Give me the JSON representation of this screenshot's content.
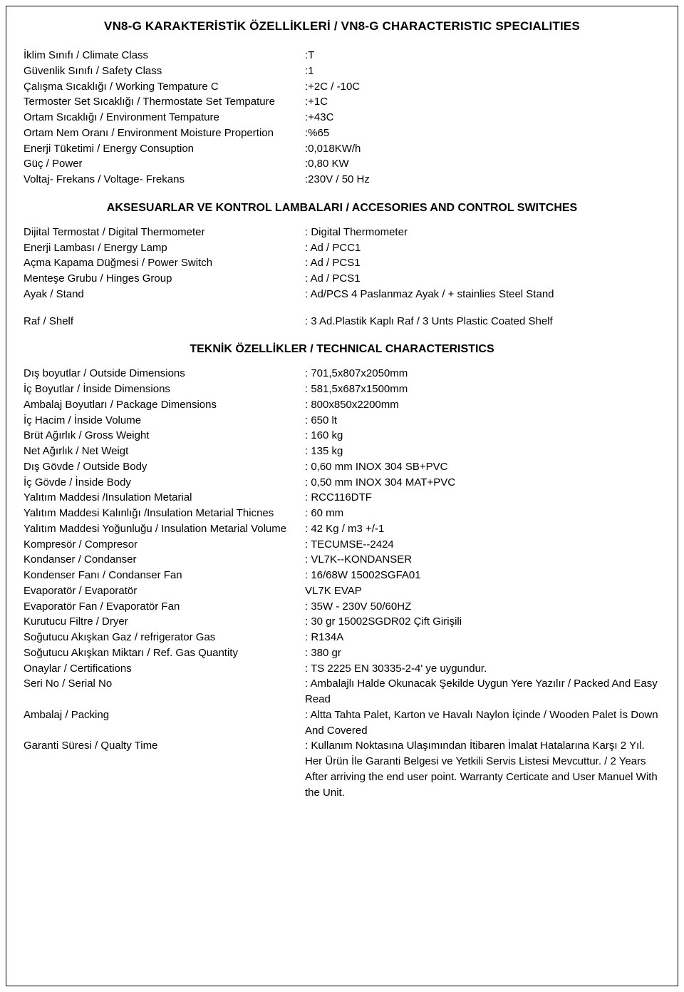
{
  "title": "VN8-G  KARAKTERİSTİK ÖZELLİKLERİ / VN8-G CHARACTERISTIC SPECIALITIES",
  "section1": [
    {
      "label": "İklim Sınıfı / Climate Class",
      "value": ":T"
    },
    {
      "label": "Güvenlik Sınıfı / Safety Class",
      "value": ":1"
    },
    {
      "label": "Çalışma Sıcaklığı / Working Tempature C",
      "value": ":+2C / -10C"
    },
    {
      "label": "Termoster Set Sıcaklığı / Thermostate Set Tempature",
      "value": ":+1C"
    },
    {
      "label": "Ortam Sıcaklığı / Environment Tempature",
      "value": ":+43C"
    },
    {
      "label": "Ortam Nem Oranı / Environment Moisture Propertion",
      "value": ":%65"
    },
    {
      "label": "Enerji Tüketimi / Energy Consuption",
      "value": ":0,018KW/h"
    },
    {
      "label": "Güç / Power",
      "value": ":0,80 KW"
    },
    {
      "label": "Voltaj- Frekans / Voltage- Frekans",
      "value": ":230V / 50 Hz"
    }
  ],
  "heading2": "AKSESUARLAR VE KONTROL LAMBALARI / ACCESORIES AND CONTROL SWITCHES",
  "section2": [
    {
      "label": "Dijital Termostat / Digital Thermometer",
      "value": ": Digital Thermometer"
    },
    {
      "label": "Enerji Lambası / Energy Lamp",
      "value": ": Ad / PCC1"
    },
    {
      "label": "Açma Kapama Düğmesi / Power Switch",
      "value": ": Ad / PCS1"
    },
    {
      "label": "Menteşe Grubu / Hinges Group",
      "value": ": Ad / PCS1"
    },
    {
      "label": "Ayak / Stand",
      "value": ": Ad/PCS 4 Paslanmaz Ayak / + stainlies Steel Stand"
    }
  ],
  "section2b": [
    {
      "label": "Raf / Shelf",
      "value": ": 3 Ad.Plastik Kaplı Raf / 3 Unts Plastic Coated Shelf"
    }
  ],
  "heading3": "TEKNİK ÖZELLİKLER / TECHNICAL CHARACTERISTICS",
  "section3": [
    {
      "label": "Dış boyutlar / Outside Dimensions",
      "value": ": 701,5x807x2050mm"
    },
    {
      "label": "İç Boyutlar / İnside Dimensions",
      "value": ": 581,5x687x1500mm"
    },
    {
      "label": "Ambalaj Boyutları / Package Dimensions",
      "value": ": 800x850x2200mm"
    },
    {
      "label": "İç Hacim / İnside Volume",
      "value": ": 650 lt"
    },
    {
      "label": "Brüt Ağırlık / Gross Weight",
      "value": ": 160 kg"
    },
    {
      "label": "Net Ağırlık / Net Weigt",
      "value": ": 135 kg"
    },
    {
      "label": "Dış Gövde / Outside Body",
      "value": ": 0,60 mm INOX 304 SB+PVC"
    },
    {
      "label": "İç Gövde / İnside Body",
      "value": ": 0,50 mm INOX 304 MAT+PVC"
    },
    {
      "label": "Yalıtım Maddesi /Insulation Metarial",
      "value": ": RCC116DTF"
    },
    {
      "label": "Yalıtım Maddesi Kalınlığı /Insulation Metarial Thicnes",
      "value": ": 60 mm"
    },
    {
      "label": "Yalıtım Maddesi Yoğunluğu / Insulation Metarial Volume",
      "value": ": 42 Kg / m3 +/-1"
    },
    {
      "label": "Kompresör / Compresor",
      "value": ": TECUMSE--2424"
    },
    {
      "label": "Kondanser / Condanser",
      "value": ": VL7K--KONDANSER"
    },
    {
      "label": "Kondenser Fanı / Condanser Fan",
      "value": ": 16/68W  15002SGFA01"
    },
    {
      "label": "Evaporatör / Evaporatör",
      "value": "  VL7K EVAP"
    },
    {
      "label": "Evaporatör Fan / Evaporatör Fan",
      "value": ": 35W - 230V 50/60HZ"
    },
    {
      "label": "Kurutucu Filtre / Dryer",
      "value": ": 30 gr 15002SGDR02 Çift Girişili"
    },
    {
      "label": "Soğutucu Akışkan Gaz / refrigerator Gas",
      "value": ": R134A"
    },
    {
      "label": "Soğutucu Akışkan Miktarı / Ref. Gas Quantity",
      "value": ": 380 gr"
    },
    {
      "label": "Onaylar / Certifications",
      "value": ": TS 2225 EN 30335-2-4' ye uygundur."
    },
    {
      "label": "Seri No / Serial No",
      "value": ":  Ambalajlı Halde Okunacak Şekilde Uygun Yere Yazılır / Packed And Easy Read"
    },
    {
      "label": "Ambalaj / Packing",
      "value": ":  Altta Tahta Palet, Karton ve Havalı Naylon İçinde / Wooden Palet İs Down And Covered"
    },
    {
      "label": "Garanti Süresi / Qualty Time",
      "value": ":  Kullanım Noktasına Ulaşımından İtibaren İmalat Hatalarına Karşı 2 Yıl. Her Ürün İle Garanti Belgesi ve Yetkili Servis Listesi Mevcuttur. / 2 Years After arriving the end user point. Warranty Certicate and User Manuel With the Unit."
    }
  ]
}
